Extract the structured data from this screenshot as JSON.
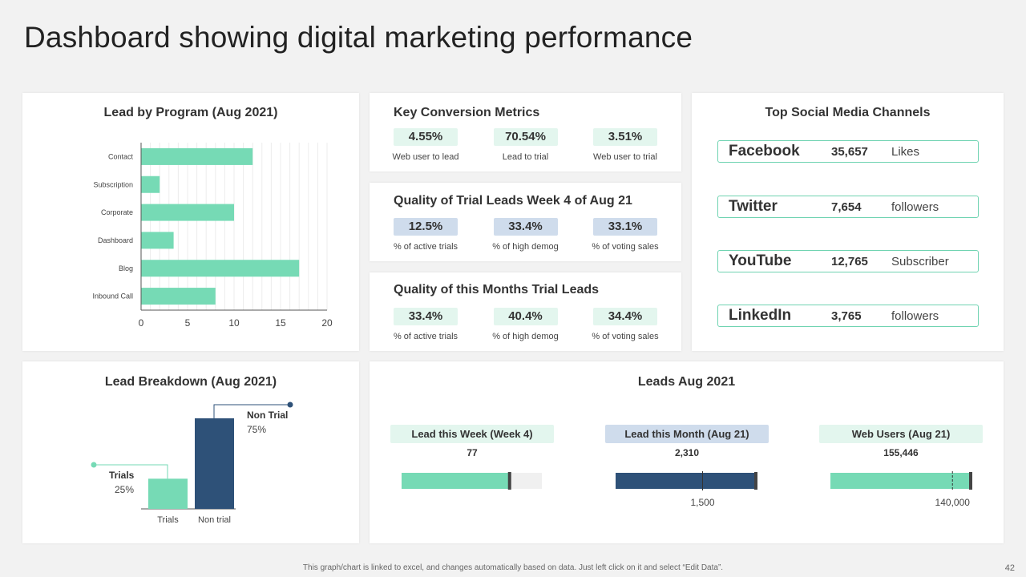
{
  "page": {
    "title": "Dashboard showing digital marketing performance",
    "footer_note": "This graph/chart is linked to excel, and changes automatically based on data. Just left click on it and select “Edit Data”.",
    "page_number": "42"
  },
  "colors": {
    "mint": "#76dab5",
    "navy": "#2e5178",
    "mint_light": "#e3f6ee",
    "blue_light": "#cfdcec"
  },
  "key_conversion": {
    "title": "Key Conversion Metrics",
    "metrics": [
      {
        "value": "4.55%",
        "label": "Web user to lead"
      },
      {
        "value": "70.54%",
        "label": "Lead to trial"
      },
      {
        "value": "3.51%",
        "label": "Web user to trial"
      }
    ]
  },
  "quality_week": {
    "title": "Quality of Trial Leads Week  4 of Aug 21",
    "metrics": [
      {
        "value": "12.5%",
        "label": "% of active trials"
      },
      {
        "value": "33.4%",
        "label": "% of high demog"
      },
      {
        "value": "33.1%",
        "label": "% of voting sales"
      }
    ]
  },
  "quality_month": {
    "title": "Quality of this Months Trial Leads",
    "metrics": [
      {
        "value": "33.4%",
        "label": "% of active trials"
      },
      {
        "value": "40.4%",
        "label": "% of high demog"
      },
      {
        "value": "34.4%",
        "label": "% of voting sales"
      }
    ]
  },
  "social": {
    "title": "Top Social Media Channels",
    "channels": [
      {
        "name": "Facebook",
        "count": "35,657",
        "unit": "Likes"
      },
      {
        "name": "Twitter",
        "count": "7,654",
        "unit": "followers"
      },
      {
        "name": "YouTube",
        "count": "12,765",
        "unit": "Subscriber"
      },
      {
        "name": "LinkedIn",
        "count": "3,765",
        "unit": "followers"
      }
    ]
  },
  "leads_aug": {
    "title": "Leads Aug 2021",
    "items": [
      {
        "label": "Lead this Week (Week 4)",
        "value_label": "77",
        "style": "mint",
        "fill": 0.77,
        "target_label": ""
      },
      {
        "label": "Lead this Month (Aug 21)",
        "value_label": "2,310",
        "style": "blue",
        "fill": 1.0,
        "target": 0.62,
        "target_label": "1,500"
      },
      {
        "label": "Web Users (Aug 21)",
        "value_label": "155,446",
        "style": "mint",
        "fill": 1.0,
        "target": 0.87,
        "target_label": "140,000"
      }
    ]
  },
  "chart_data": [
    {
      "type": "bar",
      "orientation": "horizontal",
      "title": "Lead by Program (Aug 2021)",
      "categories": [
        "Contact",
        "Subscription",
        "Corporate",
        "Dashboard",
        "Blog",
        "Inbound Call"
      ],
      "values": [
        12,
        2,
        10,
        3.5,
        17,
        8
      ],
      "xlim": [
        0,
        20
      ],
      "xticks": [
        0,
        5,
        10,
        15,
        20
      ],
      "grid": true
    },
    {
      "type": "bar",
      "title": "Lead Breakdown (Aug 2021)",
      "categories": [
        "Trials",
        "Non trial"
      ],
      "values": [
        25,
        75
      ],
      "annotations": [
        {
          "name": "Trials",
          "value_label": "25%"
        },
        {
          "name": "Non Trial",
          "value_label": "75%"
        }
      ]
    }
  ]
}
